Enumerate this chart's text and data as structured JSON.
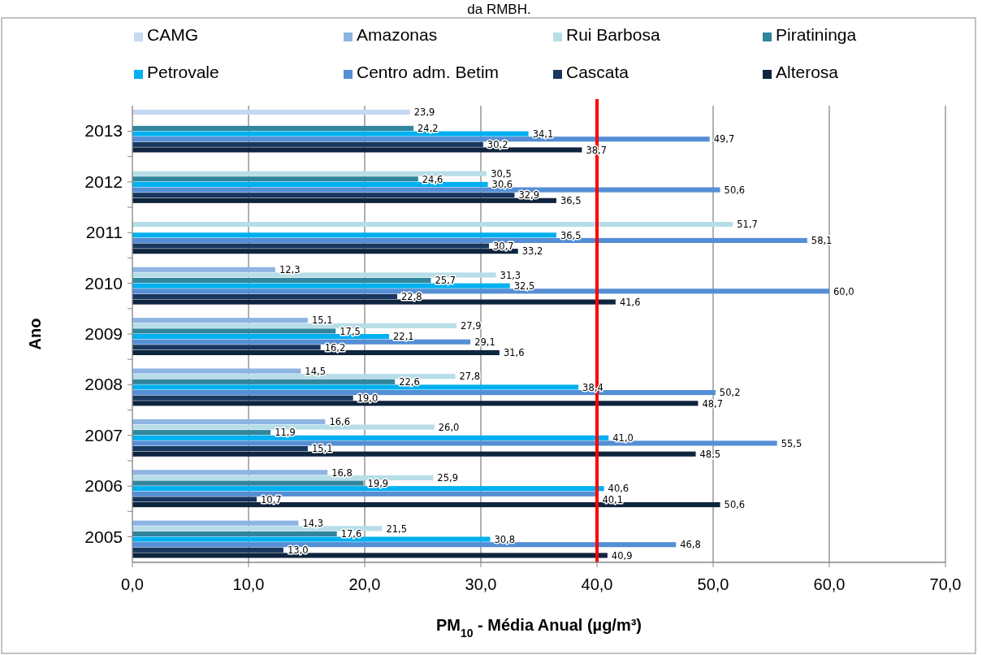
{
  "chart_data": {
    "type": "bar",
    "orientation": "horizontal",
    "title": "da RMBH.",
    "xlabel": "PM$_{10}$ - Média Anual (µg/m³)",
    "ylabel": "Ano",
    "categories": [
      "2013",
      "2012",
      "2011",
      "2010",
      "2009",
      "2008",
      "2007",
      "2006",
      "2005"
    ],
    "series": [
      {
        "name": "CAMG",
        "color": "#c6d9f1",
        "values": [
          23.9,
          null,
          null,
          null,
          null,
          null,
          null,
          null,
          null
        ],
        "value_labels": [
          "23,9",
          null,
          null,
          null,
          null,
          null,
          null,
          null,
          null
        ]
      },
      {
        "name": "Amazonas",
        "color": "#8eb4e3",
        "values": [
          null,
          null,
          null,
          12.3,
          15.1,
          14.5,
          16.6,
          16.8,
          14.3
        ],
        "value_labels": [
          null,
          null,
          null,
          "12,3",
          "15,1",
          "14,5",
          "16,6",
          "16,8",
          "14,3"
        ]
      },
      {
        "name": "Rui Barbosa",
        "color": "#b7dee8",
        "values": [
          null,
          30.5,
          51.7,
          31.3,
          27.9,
          27.8,
          26.0,
          25.9,
          21.5
        ],
        "value_labels": [
          null,
          "30,5",
          "51,7",
          "31,3",
          "27,9",
          "27,8",
          "26,0",
          "25,9",
          "21,5"
        ]
      },
      {
        "name": "Piratininga",
        "color": "#31859c",
        "values": [
          24.2,
          24.6,
          null,
          25.7,
          17.5,
          22.6,
          11.9,
          19.9,
          17.6
        ],
        "value_labels": [
          "24,2",
          "24,6",
          null,
          "25,7",
          "17,5",
          "22,6",
          "11,9",
          "19,9",
          "17,6"
        ]
      },
      {
        "name": "Petrovale",
        "color": "#00b0f0",
        "values": [
          34.1,
          30.6,
          36.5,
          32.5,
          22.1,
          38.4,
          41.0,
          40.6,
          30.8
        ],
        "value_labels": [
          "34,1",
          "30,6",
          "36,5",
          "32,5",
          "22,1",
          "38,4",
          "41,0",
          "40,6",
          "30,8"
        ]
      },
      {
        "name": "Centro adm. Betim",
        "color": "#558ed5",
        "values": [
          49.7,
          50.6,
          58.1,
          60.0,
          29.1,
          50.2,
          55.5,
          40.1,
          46.8
        ],
        "value_labels": [
          "49,7",
          "50,6",
          "58,1",
          "60,0",
          "29,1",
          "50,2",
          "55,5",
          "40,1",
          "46,8"
        ]
      },
      {
        "name": "Cascata",
        "color": "#17375e",
        "values": [
          30.2,
          32.9,
          30.7,
          22.8,
          16.2,
          19.0,
          15.1,
          10.7,
          13.0
        ],
        "value_labels": [
          "30,2",
          "32,9",
          "30,7",
          "22,8",
          "16,2",
          "19,0",
          "15,1",
          "10,7",
          "13,0"
        ]
      },
      {
        "name": "Alterosa",
        "color": "#0f243e",
        "values": [
          38.7,
          36.5,
          33.2,
          41.6,
          31.6,
          48.7,
          48.5,
          50.6,
          40.9
        ],
        "value_labels": [
          "38,7",
          "36,5",
          "33,2",
          "41,6",
          "31,6",
          "48,7",
          "48,5",
          "50,6",
          "40,9"
        ]
      }
    ],
    "xlim": [
      0,
      70
    ],
    "xticks": [
      {
        "value": 0,
        "label": "0,0"
      },
      {
        "value": 10,
        "label": "10,0"
      },
      {
        "value": 20,
        "label": "20,0"
      },
      {
        "value": 30,
        "label": "30,0"
      },
      {
        "value": 40,
        "label": "40,0"
      },
      {
        "value": 50,
        "label": "50,0"
      },
      {
        "value": 60,
        "label": "60,0"
      },
      {
        "value": 70,
        "label": "70,0"
      }
    ],
    "ref_lines": [
      {
        "axis": "x",
        "value": 40,
        "color": "#ff0000"
      }
    ],
    "grid": "x",
    "legend": "top"
  }
}
